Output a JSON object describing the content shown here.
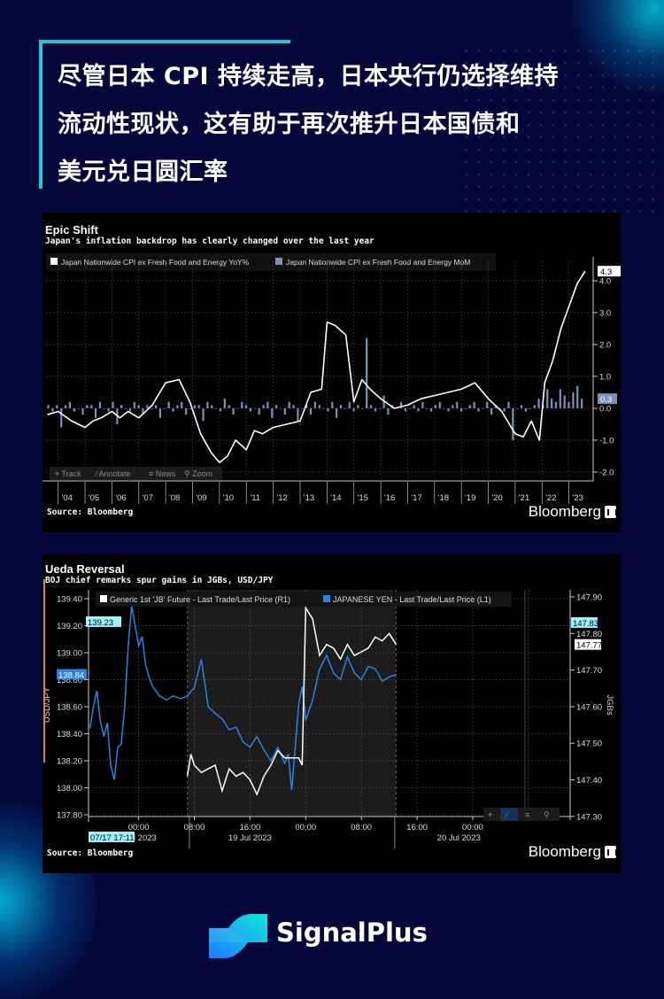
{
  "headline": {
    "lines": [
      "尽管日本 CPI 持续走高，日本央行仍选择维持",
      "流动性现状，这有助于再次推升日本国债和",
      "美元兑日圆汇率"
    ],
    "accent_color": "#1fc9d6"
  },
  "footer": {
    "brand": "SignalPlus"
  },
  "chart_data": [
    {
      "type": "line",
      "title": "Epic Shift",
      "subtitle": "Japan's inflation backdrop has clearly changed over the last year",
      "source": "Source: Bloomberg",
      "brand": "Bloomberg",
      "xlabel": "",
      "ylabel": "",
      "x_ticks": [
        "'04",
        "'05",
        "'06",
        "'07",
        "'08",
        "'09",
        "'10",
        "'11",
        "'12",
        "'13",
        "'14",
        "'15",
        "'16",
        "'17",
        "'18",
        "'19",
        "'20",
        "'21",
        "'22",
        "'23"
      ],
      "y_ticks": [
        4.0,
        3.0,
        2.0,
        1.0,
        0.0,
        -1.0,
        -2.0
      ],
      "ylim": [
        -2.2,
        4.5
      ],
      "grid": true,
      "legend_position": "top-left",
      "toolbar": [
        "Track",
        "Annotate",
        "News",
        "Zoom"
      ],
      "last_value_labels": {
        "yoy": "4.3",
        "mom": "0.3"
      },
      "series": [
        {
          "name": "Japan Nationwide CPI ex Fresh Food and Energy YoY%",
          "color": "#ffffff",
          "style": "line",
          "x": [
            2003.6,
            2004.0,
            2004.5,
            2005.0,
            2005.3,
            2005.6,
            2006.0,
            2006.3,
            2006.6,
            2007.0,
            2007.5,
            2008.0,
            2008.5,
            2008.9,
            2009.3,
            2009.7,
            2010.0,
            2010.3,
            2010.6,
            2011.0,
            2011.3,
            2011.6,
            2012.0,
            2012.5,
            2013.0,
            2013.4,
            2013.8,
            2014.0,
            2014.3,
            2014.7,
            2015.0,
            2015.3,
            2015.6,
            2016.0,
            2016.5,
            2017.0,
            2017.5,
            2018.0,
            2018.5,
            2019.0,
            2019.5,
            2020.0,
            2020.5,
            2021.0,
            2021.3,
            2021.6,
            2021.9,
            2022.1,
            2022.4,
            2022.7,
            2023.0,
            2023.3,
            2023.6
          ],
          "values": [
            -0.2,
            -0.1,
            -0.4,
            -0.6,
            -0.4,
            -0.3,
            -0.1,
            -0.3,
            -0.1,
            -0.3,
            0.1,
            0.8,
            0.9,
            0.2,
            -0.8,
            -1.4,
            -1.7,
            -1.5,
            -1.0,
            -1.3,
            -0.7,
            -0.8,
            -0.6,
            -0.5,
            -0.4,
            0.5,
            0.6,
            2.7,
            2.6,
            2.3,
            0.2,
            0.9,
            0.6,
            0.3,
            0.0,
            0.1,
            0.3,
            0.4,
            0.5,
            0.6,
            0.8,
            0.3,
            -0.1,
            -0.8,
            -0.9,
            -0.4,
            -1.0,
            0.8,
            1.5,
            2.5,
            3.2,
            3.9,
            4.3
          ]
        },
        {
          "name": "Japan Nationwide CPI ex Fresh Food and Energy MoM",
          "color": "#7d92b8",
          "style": "bar",
          "x_range": [
            2003.6,
            2023.6
          ],
          "values": [
            0.1,
            -0.1,
            0.1,
            -0.6,
            0.1,
            0.2,
            -0.1,
            0.0,
            -0.2,
            0.1,
            0.1,
            -0.3,
            0.2,
            0.0,
            -0.1,
            0.2,
            -0.5,
            0.1,
            0.0,
            -0.1,
            0.2,
            0.1,
            -0.2,
            0.1,
            0.0,
            0.1,
            -0.3,
            0.0,
            0.2,
            -0.1,
            0.1,
            0.2,
            -0.2,
            0.0,
            0.1,
            0.1,
            -0.4,
            0.2,
            0.1,
            0.0,
            -0.1,
            0.3,
            0.1,
            -0.2,
            0.0,
            0.2,
            0.1,
            -0.1,
            0.0,
            -0.2,
            0.1,
            0.2,
            -0.3,
            0.1,
            0.0,
            -0.2,
            0.2,
            0.1,
            -0.4,
            0.0,
            0.1,
            -0.2,
            0.2,
            0.1,
            0.0,
            -0.1,
            0.2,
            -0.3,
            0.1,
            0.0,
            0.2,
            -0.1,
            0.1,
            0.0,
            2.2,
            0.1,
            -0.1,
            0.0,
            0.4,
            -0.2,
            0.1,
            0.0,
            0.2,
            -0.1,
            0.0,
            0.1,
            -0.1,
            0.2,
            0.0,
            -0.1,
            0.1,
            0.2,
            0.0,
            -0.1,
            0.1,
            0.2,
            -0.1,
            0.0,
            0.1,
            0.2,
            -0.1,
            0.0,
            0.2,
            -0.2,
            0.1,
            0.0,
            -0.1,
            0.2,
            -1.0,
            0.0,
            0.1,
            -0.1,
            0.0,
            0.1,
            0.3,
            0.1,
            0.6,
            0.3,
            0.2,
            0.6,
            0.4,
            0.2,
            0.5,
            0.7,
            0.3
          ]
        }
      ]
    },
    {
      "type": "line",
      "title": "Ueda Reversal",
      "subtitle": "BOJ chief remarks spur gains in JGBs, USD/JPY",
      "source": "Source: Bloomberg",
      "brand": "Bloomberg",
      "ylabel_left": "USD/JPY",
      "ylabel_right": "JGBs",
      "x_ticks": [
        "00:00",
        "08:00",
        "16:00",
        "00:00",
        "08:00",
        "16:00",
        "00:00"
      ],
      "x_date_labels": [
        "Jul 2023",
        "19 Jul 2023",
        "20 Jul 2023"
      ],
      "cursor_label": "07/17 17:11",
      "y_left_ticks": [
        139.4,
        139.2,
        139.0,
        138.8,
        138.6,
        138.4,
        138.2,
        138.0,
        137.8
      ],
      "y_right_ticks": [
        147.9,
        147.8,
        147.7,
        147.6,
        147.5,
        147.4,
        147.3
      ],
      "ylim_left": [
        137.75,
        139.45
      ],
      "ylim_right": [
        147.28,
        147.92
      ],
      "grid": true,
      "legend_position": "top-left",
      "last_value_labels": {
        "usdjpy_high": "139.23",
        "usdjpy_last": "138.84",
        "jgb_high": "147.83",
        "jgb_last": "147.77"
      },
      "series": [
        {
          "name": "Generic 1st 'JB' Future - Last Trade/Last Price (R1)",
          "axis": "right",
          "color": "#ffffff",
          "x_hours": [
            7.0,
            7.5,
            8.0,
            8.5,
            9.0,
            10.0,
            11.0,
            12.0,
            13.0,
            14.0,
            15.0,
            16.0,
            17.0,
            18.0,
            19.0,
            20.0,
            21.0,
            22.0,
            23.0,
            23.5,
            24.0,
            25.0,
            26.0,
            27.0,
            28.0,
            29.0,
            30.0,
            31.0,
            32.0,
            33.0,
            34.0,
            35.0,
            36.0,
            37.0
          ],
          "values": [
            147.41,
            147.47,
            147.44,
            147.43,
            147.42,
            147.43,
            147.44,
            147.37,
            147.43,
            147.41,
            147.42,
            147.4,
            147.36,
            147.41,
            147.44,
            147.48,
            147.46,
            147.46,
            147.46,
            147.44,
            147.87,
            147.84,
            147.74,
            147.77,
            147.76,
            147.73,
            147.77,
            147.74,
            147.75,
            147.76,
            147.79,
            147.78,
            147.8,
            147.77
          ]
        },
        {
          "name": "JAPANESE YEN - Last Trade/Last Price (L1)",
          "axis": "left",
          "color": "#2b82e0",
          "x_hours": [
            -7.0,
            -6.5,
            -6.0,
            -5.5,
            -5.0,
            -4.5,
            -4.0,
            -3.5,
            -3.0,
            -2.5,
            -2.0,
            -1.5,
            -1.0,
            0.0,
            0.5,
            1.0,
            1.5,
            2.0,
            3.0,
            4.0,
            5.0,
            6.0,
            7.0,
            8.0,
            9.0,
            10.0,
            11.0,
            12.0,
            13.0,
            14.0,
            15.0,
            16.0,
            17.0,
            18.0,
            19.0,
            20.0,
            21.0,
            21.5,
            22.0,
            23.0,
            23.5,
            24.0,
            25.0,
            26.0,
            27.0,
            28.0,
            29.0,
            30.0,
            31.0,
            32.0,
            33.0,
            34.0,
            35.0,
            36.0,
            37.0
          ],
          "values": [
            138.44,
            138.6,
            138.72,
            138.49,
            138.38,
            138.48,
            138.16,
            138.06,
            138.3,
            138.32,
            138.6,
            139.05,
            139.35,
            139.05,
            139.12,
            138.91,
            138.82,
            138.75,
            138.68,
            138.65,
            138.68,
            138.66,
            138.68,
            138.74,
            138.95,
            138.6,
            138.55,
            138.51,
            138.43,
            138.45,
            138.34,
            138.3,
            138.38,
            138.28,
            138.2,
            138.3,
            138.18,
            138.25,
            137.98,
            138.62,
            138.75,
            138.5,
            138.65,
            138.88,
            138.98,
            138.85,
            138.8,
            138.97,
            138.85,
            138.8,
            138.9,
            138.88,
            138.79,
            138.82,
            138.84
          ]
        }
      ]
    }
  ]
}
